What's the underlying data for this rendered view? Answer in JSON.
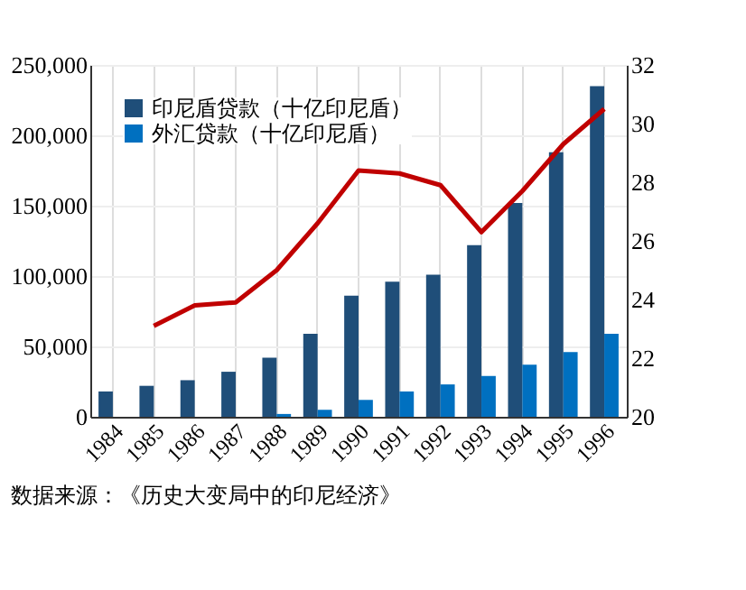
{
  "chart_data": {
    "type": "bar",
    "categories": [
      "1984",
      "1985",
      "1986",
      "1987",
      "1988",
      "1989",
      "1990",
      "1991",
      "1992",
      "1993",
      "1994",
      "1995",
      "1996"
    ],
    "series": [
      {
        "name": "印尼盾贷款（十亿印尼盾）",
        "color": "#1f4e79",
        "values": [
          18000,
          22000,
          26000,
          32000,
          42000,
          59000,
          86000,
          96000,
          101000,
          122000,
          152000,
          188000,
          235000
        ]
      },
      {
        "name": "外汇贷款（十亿印尼盾）",
        "color": "#0070c0",
        "values": [
          0,
          0,
          0,
          0,
          2000,
          5000,
          12000,
          18000,
          23000,
          29000,
          37000,
          46000,
          59000
        ]
      },
      {
        "type": "line",
        "axis": "y2",
        "color": "#c00000",
        "values": [
          null,
          23.1,
          23.8,
          23.9,
          25.0,
          26.6,
          28.4,
          28.3,
          27.9,
          26.3,
          27.7,
          29.3,
          30.5
        ]
      }
    ],
    "ylim": [
      0,
      250000
    ],
    "yticks": [
      0,
      {
        "value": 50000,
        "label": "50,000"
      },
      {
        "value": 100000,
        "label": "100,000"
      },
      {
        "value": 150000,
        "label": "150,000"
      },
      {
        "value": 200000,
        "label": "200,000"
      },
      {
        "value": 250000,
        "label": "250,000"
      }
    ],
    "y2lim": [
      20,
      32
    ],
    "y2ticks": [
      20,
      22,
      24,
      26,
      28,
      30,
      32
    ],
    "grid": true,
    "legend": "top left",
    "annotations": [
      "数据来源：《历史大变局中的印尼经济》"
    ]
  }
}
